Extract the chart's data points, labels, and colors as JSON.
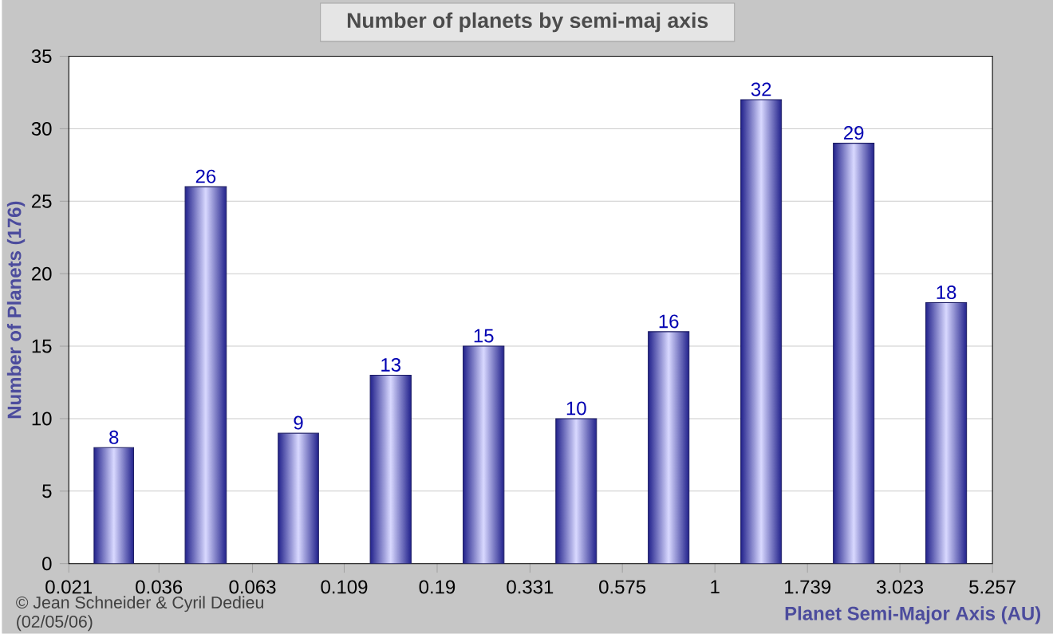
{
  "chart_data": {
    "type": "histogram",
    "title": "Number of planets by semi-maj axis",
    "xlabel": "Planet Semi-Major Axis (AU)",
    "ylabel": "Number of Planets (176)",
    "bins": [
      0.021,
      0.036,
      0.063,
      0.109,
      0.19,
      0.331,
      0.575,
      1,
      1.739,
      3.023,
      5.257
    ],
    "values": [
      8,
      26,
      9,
      13,
      15,
      10,
      16,
      32,
      29,
      18
    ],
    "color": "#22228c",
    "log": "x",
    "xlim": [
      0.021,
      5.257
    ],
    "xticks": [
      0.021,
      0.036,
      0.063,
      0.109,
      0.19,
      0.331,
      0.575,
      1,
      1.739,
      3.023,
      5.257
    ],
    "ylim": [
      0,
      35
    ],
    "yticks": [
      0,
      5,
      10,
      15,
      20,
      25,
      30,
      35
    ],
    "grid": "y",
    "data_labels": true,
    "annotations": [
      "© Jean Schneider & Cyril Dedieu",
      "(02/05/06)"
    ]
  }
}
